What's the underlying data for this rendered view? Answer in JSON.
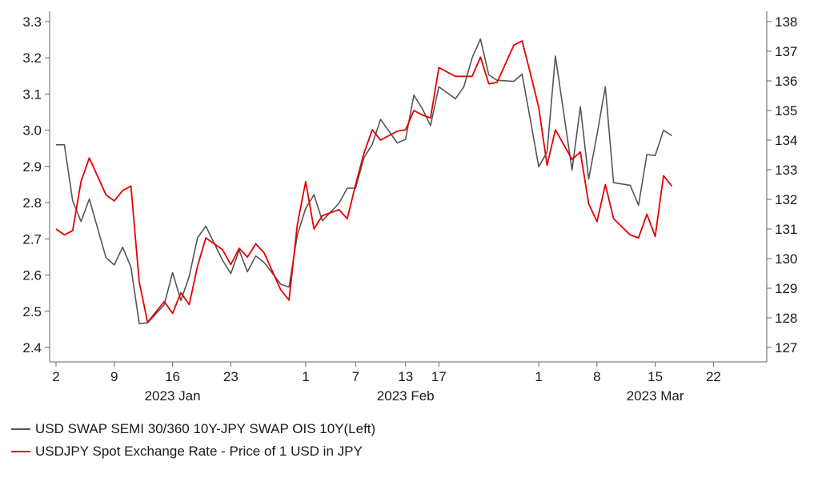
{
  "chart_data": {
    "type": "line",
    "colors": {
      "swap": "#555555",
      "usdjpy": "#e60000",
      "axis": "#666666"
    },
    "left_axis": {
      "ylim": [
        2.4,
        3.3
      ],
      "ticks": [
        "2.4",
        "2.5",
        "2.6",
        "2.7",
        "2.8",
        "2.9",
        "3.0",
        "3.1",
        "3.2",
        "3.3"
      ]
    },
    "right_axis": {
      "ylim": [
        127,
        138
      ],
      "ticks": [
        "127",
        "128",
        "129",
        "130",
        "131",
        "132",
        "133",
        "134",
        "135",
        "136",
        "137",
        "138"
      ]
    },
    "x_axis": {
      "range": [
        "2023-01-02",
        "2023-03-31"
      ],
      "day_ticks": [
        {
          "date": "2023-01-02",
          "label": "2"
        },
        {
          "date": "2023-01-09",
          "label": "9"
        },
        {
          "date": "2023-01-16",
          "label": "16"
        },
        {
          "date": "2023-01-23",
          "label": "23"
        },
        {
          "date": "2023-02-01",
          "label": "1"
        },
        {
          "date": "2023-02-07",
          "label": "7"
        },
        {
          "date": "2023-02-13",
          "label": "13"
        },
        {
          "date": "2023-02-17",
          "label": "17"
        },
        {
          "date": "2023-03-01",
          "label": "1"
        },
        {
          "date": "2023-03-08",
          "label": "8"
        },
        {
          "date": "2023-03-15",
          "label": "15"
        },
        {
          "date": "2023-03-22",
          "label": "22"
        }
      ],
      "month_labels": [
        {
          "date": "2023-01-16",
          "label": "2023 Jan"
        },
        {
          "date": "2023-02-13",
          "label": "2023 Feb"
        },
        {
          "date": "2023-03-15",
          "label": "2023 Mar"
        }
      ]
    },
    "series": [
      {
        "name": "USD SWAP SEMI 30/360 10Y-JPY SWAP OIS 10Y(Left)",
        "axis": "left",
        "points": [
          [
            "2023-01-02",
            2.96
          ],
          [
            "2023-01-03",
            2.96
          ],
          [
            "2023-01-04",
            2.805
          ],
          [
            "2023-01-05",
            2.748
          ],
          [
            "2023-01-06",
            2.81
          ],
          [
            "2023-01-08",
            2.648
          ],
          [
            "2023-01-09",
            2.628
          ],
          [
            "2023-01-10",
            2.677
          ],
          [
            "2023-01-11",
            2.622
          ],
          [
            "2023-01-12",
            2.466
          ],
          [
            "2023-01-13",
            2.468
          ],
          [
            "2023-01-15",
            2.518
          ],
          [
            "2023-01-16",
            2.607
          ],
          [
            "2023-01-17",
            2.53
          ],
          [
            "2023-01-18",
            2.596
          ],
          [
            "2023-01-19",
            2.703
          ],
          [
            "2023-01-20",
            2.735
          ],
          [
            "2023-01-22",
            2.641
          ],
          [
            "2023-01-23",
            2.604
          ],
          [
            "2023-01-24",
            2.669
          ],
          [
            "2023-01-25",
            2.609
          ],
          [
            "2023-01-26",
            2.653
          ],
          [
            "2023-01-27",
            2.635
          ],
          [
            "2023-01-29",
            2.575
          ],
          [
            "2023-01-30",
            2.567
          ],
          [
            "2023-01-31",
            2.711
          ],
          [
            "2023-02-01",
            2.784
          ],
          [
            "2023-02-02",
            2.822
          ],
          [
            "2023-02-03",
            2.75
          ],
          [
            "2023-02-05",
            2.798
          ],
          [
            "2023-02-06",
            2.84
          ],
          [
            "2023-02-07",
            2.84
          ],
          [
            "2023-02-08",
            2.924
          ],
          [
            "2023-02-09",
            2.961
          ],
          [
            "2023-02-10",
            3.03
          ],
          [
            "2023-02-12",
            2.965
          ],
          [
            "2023-02-13",
            2.975
          ],
          [
            "2023-02-14",
            3.097
          ],
          [
            "2023-02-15",
            3.06
          ],
          [
            "2023-02-16",
            3.013
          ],
          [
            "2023-02-17",
            3.12
          ],
          [
            "2023-02-19",
            3.087
          ],
          [
            "2023-02-20",
            3.12
          ],
          [
            "2023-02-21",
            3.2
          ],
          [
            "2023-02-22",
            3.252
          ],
          [
            "2023-02-23",
            3.153
          ],
          [
            "2023-02-24",
            3.138
          ],
          [
            "2023-02-26",
            3.135
          ],
          [
            "2023-02-27",
            3.155
          ],
          [
            "2023-02-28",
            3.028
          ],
          [
            "2023-03-01",
            2.899
          ],
          [
            "2023-03-02",
            2.94
          ],
          [
            "2023-03-03",
            3.205
          ],
          [
            "2023-03-05",
            2.89
          ],
          [
            "2023-03-06",
            3.065
          ],
          [
            "2023-03-07",
            2.865
          ],
          [
            "2023-03-08",
            2.988
          ],
          [
            "2023-03-09",
            3.12
          ],
          [
            "2023-03-10",
            2.855
          ],
          [
            "2023-03-12",
            2.848
          ],
          [
            "2023-03-13",
            2.793
          ],
          [
            "2023-03-14",
            2.933
          ],
          [
            "2023-03-15",
            2.93
          ],
          [
            "2023-03-16",
            3.0
          ],
          [
            "2023-03-17",
            2.985
          ]
        ]
      },
      {
        "name": "USDJPY Spot Exchange Rate - Price of 1 USD in JPY",
        "axis": "right",
        "points": [
          [
            "2023-01-02",
            131.0
          ],
          [
            "2023-01-03",
            130.8
          ],
          [
            "2023-01-04",
            130.95
          ],
          [
            "2023-01-05",
            132.6
          ],
          [
            "2023-01-06",
            133.4
          ],
          [
            "2023-01-08",
            132.15
          ],
          [
            "2023-01-09",
            131.95
          ],
          [
            "2023-01-10",
            132.3
          ],
          [
            "2023-01-11",
            132.45
          ],
          [
            "2023-01-12",
            129.2
          ],
          [
            "2023-01-13",
            127.85
          ],
          [
            "2023-01-15",
            128.55
          ],
          [
            "2023-01-16",
            128.15
          ],
          [
            "2023-01-17",
            128.85
          ],
          [
            "2023-01-18",
            128.45
          ],
          [
            "2023-01-19",
            129.75
          ],
          [
            "2023-01-20",
            130.7
          ],
          [
            "2023-01-22",
            130.3
          ],
          [
            "2023-01-23",
            129.8
          ],
          [
            "2023-01-24",
            130.35
          ],
          [
            "2023-01-25",
            130.05
          ],
          [
            "2023-01-26",
            130.5
          ],
          [
            "2023-01-27",
            130.2
          ],
          [
            "2023-01-29",
            128.95
          ],
          [
            "2023-01-30",
            128.6
          ],
          [
            "2023-01-31",
            131.15
          ],
          [
            "2023-02-01",
            132.6
          ],
          [
            "2023-02-02",
            131.0
          ],
          [
            "2023-02-03",
            131.45
          ],
          [
            "2023-02-05",
            131.65
          ],
          [
            "2023-02-06",
            131.35
          ],
          [
            "2023-02-07",
            132.5
          ],
          [
            "2023-02-08",
            133.55
          ],
          [
            "2023-02-09",
            134.35
          ],
          [
            "2023-02-10",
            134.0
          ],
          [
            "2023-02-12",
            134.3
          ],
          [
            "2023-02-13",
            134.35
          ],
          [
            "2023-02-14",
            135.0
          ],
          [
            "2023-02-15",
            134.85
          ],
          [
            "2023-02-16",
            134.75
          ],
          [
            "2023-02-17",
            136.45
          ],
          [
            "2023-02-19",
            136.15
          ],
          [
            "2023-02-20",
            136.15
          ],
          [
            "2023-02-21",
            136.15
          ],
          [
            "2023-02-22",
            136.8
          ],
          [
            "2023-02-23",
            135.9
          ],
          [
            "2023-02-24",
            135.95
          ],
          [
            "2023-02-26",
            137.2
          ],
          [
            "2023-02-27",
            137.35
          ],
          [
            "2023-02-28",
            136.25
          ],
          [
            "2023-03-01",
            135.1
          ],
          [
            "2023-03-02",
            133.15
          ],
          [
            "2023-03-03",
            134.35
          ],
          [
            "2023-03-05",
            133.35
          ],
          [
            "2023-03-06",
            133.6
          ],
          [
            "2023-03-07",
            131.85
          ],
          [
            "2023-03-08",
            131.25
          ],
          [
            "2023-03-09",
            132.5
          ],
          [
            "2023-03-10",
            131.35
          ],
          [
            "2023-03-12",
            130.8
          ],
          [
            "2023-03-13",
            130.7
          ],
          [
            "2023-03-14",
            131.5
          ],
          [
            "2023-03-15",
            130.75
          ],
          [
            "2023-03-16",
            132.8
          ],
          [
            "2023-03-17",
            132.45
          ]
        ]
      }
    ]
  }
}
